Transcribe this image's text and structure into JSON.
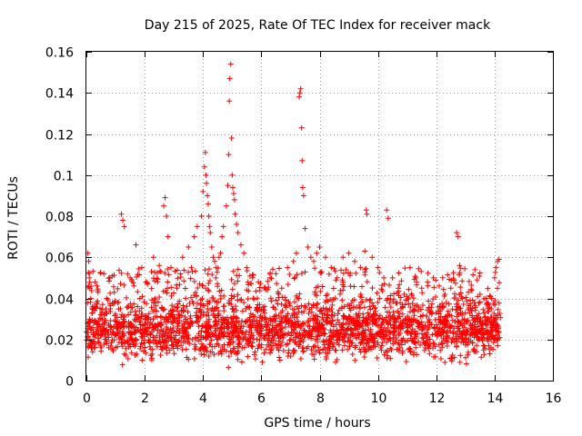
{
  "chart_data": {
    "type": "scatter",
    "title": "Day 215 of 2025, Rate Of TEC Index for receiver mack",
    "xlabel": "GPS time / hours",
    "ylabel": "ROTI / TECUs",
    "xlim": [
      0,
      16
    ],
    "ylim": [
      0,
      0.16
    ],
    "x_ticks": [
      0,
      2,
      4,
      6,
      8,
      10,
      12,
      14,
      16
    ],
    "x_tick_labels": [
      "0",
      "2",
      "4",
      "6",
      "8",
      "10",
      "12",
      "14",
      "16"
    ],
    "y_ticks": [
      0,
      0.02,
      0.04,
      0.06,
      0.08,
      0.1,
      0.12,
      0.14,
      0.16
    ],
    "y_tick_labels": [
      "0",
      "0.02",
      "0.04",
      "0.06",
      "0.08",
      "0.1",
      "0.12",
      "0.14",
      "0.16"
    ],
    "grid": true,
    "marker": "+",
    "color": "#ff0000",
    "series": [
      {
        "name": "ROTI",
        "x": [
          0.05,
          0.08,
          0.1,
          0.12,
          0.15,
          0.2,
          0.3,
          0.4,
          0.5,
          0.6,
          0.7,
          1.2,
          1.25,
          1.3,
          1.5,
          1.7,
          1.9,
          2.1,
          2.3,
          2.5,
          2.65,
          2.7,
          2.75,
          2.8,
          2.9,
          3.1,
          3.3,
          3.5,
          3.6,
          3.7,
          3.8,
          3.95,
          4.0,
          4.05,
          4.08,
          4.1,
          4.12,
          4.15,
          4.18,
          4.2,
          4.22,
          4.25,
          4.3,
          4.35,
          4.4,
          4.45,
          4.55,
          4.6,
          4.65,
          4.7,
          4.8,
          4.85,
          4.88,
          4.9,
          4.92,
          4.95,
          4.98,
          5.0,
          5.02,
          5.05,
          5.08,
          5.1,
          5.15,
          5.2,
          5.3,
          5.4,
          5.5,
          5.7,
          5.9,
          6.1,
          6.3,
          6.5,
          6.7,
          6.9,
          7.1,
          7.2,
          7.3,
          7.32,
          7.35,
          7.38,
          7.4,
          7.42,
          7.45,
          7.5,
          7.6,
          7.7,
          7.8,
          7.9,
          8.0,
          8.2,
          8.4,
          8.6,
          8.8,
          9.0,
          9.2,
          9.4,
          9.55,
          9.6,
          9.62,
          9.8,
          10.0,
          10.2,
          10.3,
          10.35,
          10.5,
          10.7,
          10.9,
          11.1,
          11.3,
          11.5,
          11.7,
          11.9,
          12.1,
          12.3,
          12.5,
          12.7,
          12.75,
          12.8,
          12.9,
          13.1,
          13.3,
          13.5,
          13.7,
          13.9,
          14.0,
          14.05,
          14.1,
          14.15
        ],
        "y": [
          0.062,
          0.058,
          0.05,
          0.045,
          0.04,
          0.035,
          0.048,
          0.043,
          0.03,
          0.052,
          0.04,
          0.081,
          0.078,
          0.075,
          0.05,
          0.066,
          0.055,
          0.047,
          0.06,
          0.056,
          0.085,
          0.089,
          0.08,
          0.07,
          0.055,
          0.045,
          0.06,
          0.065,
          0.055,
          0.07,
          0.075,
          0.08,
          0.092,
          0.104,
          0.111,
          0.1,
          0.096,
          0.09,
          0.086,
          0.08,
          0.075,
          0.072,
          0.065,
          0.06,
          0.058,
          0.055,
          0.06,
          0.062,
          0.07,
          0.075,
          0.085,
          0.095,
          0.11,
          0.136,
          0.147,
          0.154,
          0.118,
          0.1,
          0.094,
          0.091,
          0.088,
          0.081,
          0.076,
          0.072,
          0.066,
          0.062,
          0.055,
          0.05,
          0.048,
          0.045,
          0.05,
          0.052,
          0.045,
          0.055,
          0.058,
          0.062,
          0.138,
          0.14,
          0.142,
          0.123,
          0.107,
          0.094,
          0.09,
          0.074,
          0.065,
          0.06,
          0.058,
          0.062,
          0.065,
          0.06,
          0.055,
          0.05,
          0.06,
          0.062,
          0.058,
          0.055,
          0.063,
          0.083,
          0.081,
          0.06,
          0.055,
          0.05,
          0.083,
          0.079,
          0.05,
          0.045,
          0.042,
          0.055,
          0.05,
          0.045,
          0.048,
          0.05,
          0.046,
          0.042,
          0.045,
          0.072,
          0.07,
          0.056,
          0.04,
          0.043,
          0.038,
          0.042,
          0.04,
          0.04,
          0.05,
          0.055,
          0.058,
          0.059
        ]
      }
    ],
    "dense_band": {
      "x_range": [
        0,
        14.2
      ],
      "y_typical_range": [
        0.005,
        0.045
      ],
      "description_of_density": "continuous"
    }
  }
}
